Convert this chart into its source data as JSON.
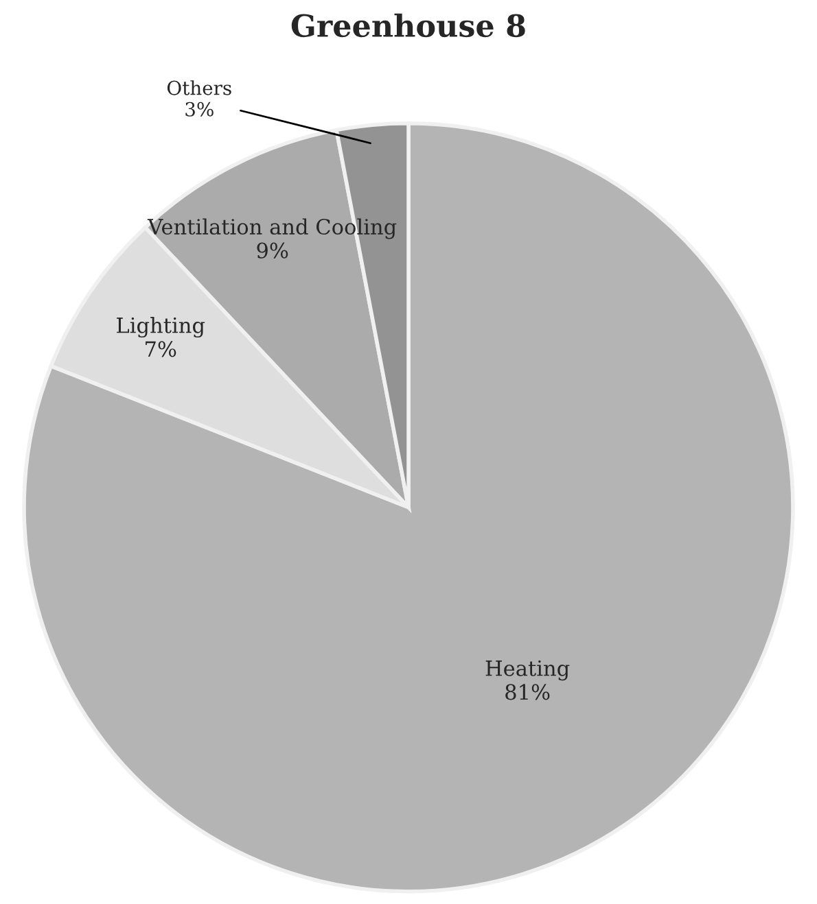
{
  "chart_data": {
    "type": "pie",
    "title": "Greenhouse 8",
    "categories": [
      "Heating",
      "Lighting",
      "Ventilation and Cooling",
      "Others"
    ],
    "values": [
      81,
      7,
      9,
      3
    ],
    "value_labels": [
      "81%",
      "7%",
      "9%",
      "3%"
    ],
    "colors": [
      "#b4b4b4",
      "#dedede",
      "#ababab",
      "#939393"
    ],
    "legend": false
  }
}
